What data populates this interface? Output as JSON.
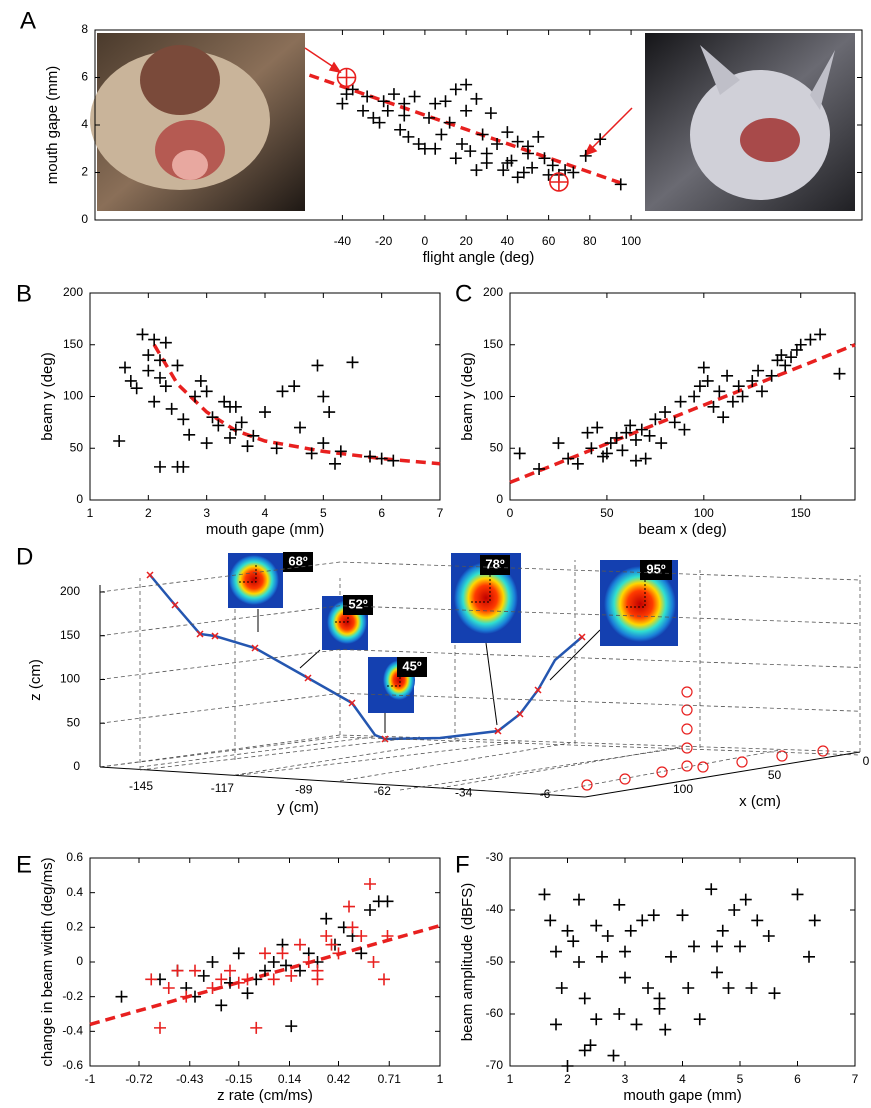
{
  "chart_data": [
    {
      "type": "scatter",
      "panel": "A",
      "xlabel": "flight angle (deg)",
      "ylabel": "mouth gape (mm)",
      "xlim": [
        -160,
        212
      ],
      "ylim": [
        0,
        8
      ],
      "xticks": [
        -40,
        -20,
        0,
        20,
        40,
        60,
        80,
        100
      ],
      "yticks": [
        0,
        2,
        4,
        6,
        8
      ],
      "series": [
        {
          "color": "#000000",
          "marker": "plus",
          "x": [
            -40,
            -38,
            -35,
            -30,
            -28,
            -25,
            -22,
            -20,
            -18,
            -15,
            -12,
            -10,
            -8,
            -5,
            -3,
            0,
            2,
            5,
            8,
            10,
            12,
            15,
            18,
            20,
            22,
            25,
            28,
            30,
            32,
            35,
            38,
            40,
            42,
            45,
            48,
            50,
            52,
            55,
            58,
            60,
            62,
            65,
            68,
            72,
            78,
            85,
            95,
            15,
            20,
            25,
            5,
            -10,
            30,
            40,
            45,
            50
          ],
          "values": [
            4.9,
            5.3,
            5.5,
            4.6,
            5.2,
            4.3,
            4.1,
            5.0,
            4.6,
            5.3,
            3.8,
            4.4,
            3.5,
            5.2,
            3.2,
            3.0,
            4.3,
            4.9,
            3.6,
            5.0,
            4.1,
            5.5,
            3.2,
            5.7,
            2.9,
            5.1,
            3.6,
            2.4,
            4.5,
            3.2,
            2.1,
            3.7,
            2.5,
            3.3,
            2.0,
            2.8,
            2.2,
            3.5,
            2.6,
            1.9,
            2.3,
            1.9,
            2.1,
            2.0,
            2.7,
            3.4,
            1.5,
            2.6,
            4.6,
            2.1,
            3.0,
            4.9,
            2.8,
            2.4,
            1.8,
            3.1
          ]
        },
        {
          "color": "#e8201f",
          "marker": "circle-plus",
          "x": [
            -38,
            65
          ],
          "values": [
            6.0,
            1.6
          ]
        }
      ],
      "fit": {
        "color": "#e8201f",
        "x": [
          -56,
          95
        ],
        "y": [
          6.1,
          1.56
        ]
      }
    },
    {
      "type": "scatter",
      "panel": "B",
      "xlabel": "mouth gape (mm)",
      "ylabel": "beam y (deg)",
      "xlim": [
        1,
        7
      ],
      "ylim": [
        0,
        200
      ],
      "xticks": [
        1,
        2,
        3,
        4,
        5,
        6,
        7
      ],
      "yticks": [
        0,
        50,
        100,
        150,
        200
      ],
      "series": [
        {
          "color": "#000000",
          "marker": "plus",
          "x": [
            1.5,
            1.6,
            1.7,
            1.8,
            1.9,
            2.0,
            2.0,
            2.1,
            2.1,
            2.2,
            2.2,
            2.3,
            2.3,
            2.4,
            2.5,
            2.5,
            2.6,
            2.7,
            2.8,
            2.9,
            3.0,
            3.0,
            3.1,
            3.2,
            3.3,
            3.4,
            3.5,
            3.5,
            3.6,
            3.7,
            3.8,
            4.0,
            4.2,
            4.3,
            4.5,
            4.6,
            4.8,
            4.9,
            5.0,
            5.0,
            5.1,
            5.2,
            5.3,
            5.5,
            5.8,
            6.0,
            6.2,
            2.2,
            2.6,
            3.4
          ],
          "values": [
            57,
            128,
            115,
            108,
            160,
            140,
            125,
            155,
            95,
            135,
            32,
            152,
            110,
            88,
            130,
            32,
            78,
            63,
            100,
            115,
            55,
            105,
            80,
            72,
            95,
            60,
            68,
            90,
            75,
            52,
            62,
            85,
            50,
            105,
            110,
            70,
            45,
            130,
            55,
            100,
            85,
            35,
            47,
            133,
            42,
            40,
            38,
            118,
            32,
            90
          ]
        }
      ],
      "fit": {
        "color": "#e8201f",
        "x": [
          2.1,
          2.5,
          3,
          3.5,
          4,
          5,
          6,
          7
        ],
        "y": [
          150,
          112,
          85,
          67,
          57,
          47,
          40,
          35
        ]
      }
    },
    {
      "type": "scatter",
      "panel": "C",
      "xlabel": "beam x (deg)",
      "ylabel": "beam y (deg)",
      "xlim": [
        0,
        178
      ],
      "ylim": [
        0,
        200
      ],
      "xticks": [
        0,
        50,
        100,
        150
      ],
      "yticks": [
        0,
        50,
        100,
        150,
        200
      ],
      "series": [
        {
          "color": "#000000",
          "marker": "plus",
          "x": [
            5,
            15,
            25,
            35,
            40,
            42,
            45,
            48,
            50,
            52,
            55,
            58,
            60,
            62,
            65,
            68,
            70,
            72,
            75,
            78,
            80,
            85,
            88,
            90,
            95,
            98,
            100,
            102,
            105,
            108,
            110,
            112,
            115,
            118,
            120,
            125,
            128,
            130,
            135,
            138,
            140,
            142,
            145,
            148,
            150,
            155,
            160,
            170,
            30,
            65
          ],
          "values": [
            45,
            30,
            55,
            35,
            65,
            50,
            70,
            42,
            45,
            55,
            60,
            48,
            65,
            72,
            58,
            68,
            40,
            62,
            78,
            55,
            85,
            75,
            95,
            68,
            100,
            110,
            128,
            115,
            90,
            105,
            80,
            120,
            95,
            110,
            100,
            115,
            125,
            105,
            120,
            135,
            140,
            130,
            138,
            145,
            150,
            155,
            160,
            122,
            40,
            38
          ]
        }
      ],
      "fit": {
        "color": "#e8201f",
        "x": [
          0,
          178
        ],
        "y": [
          17,
          150
        ]
      }
    },
    {
      "type": "line3d",
      "panel": "D",
      "xlabel": "x (cm)",
      "ylabel": "y (cm)",
      "zlabel": "z (cm)",
      "xlim": [
        0,
        100
      ],
      "ylim": [
        -145,
        -6
      ],
      "zlim": [
        0,
        200
      ],
      "xticks": [
        0,
        50,
        100
      ],
      "yticks": [
        -145,
        -117,
        -89,
        -62,
        -34,
        -6
      ],
      "zticks": [
        0,
        50,
        100,
        150,
        200
      ],
      "beam_widths": [
        "68º",
        "52º",
        "45º",
        "78º",
        "95º"
      ]
    },
    {
      "type": "scatter",
      "panel": "E",
      "xlabel": "z rate (cm/ms)",
      "ylabel": "change in beam width (deg/ms)",
      "xlim": [
        -1,
        1
      ],
      "ylim": [
        -0.6,
        0.6
      ],
      "xticks": [
        -1,
        -0.72,
        -0.43,
        -0.15,
        0.14,
        0.42,
        0.71,
        1
      ],
      "yticks": [
        -0.6,
        -0.4,
        -0.2,
        0,
        0.2,
        0.4,
        0.6
      ],
      "series": [
        {
          "color": "#000000",
          "marker": "plus",
          "x": [
            -0.82,
            -0.6,
            -0.5,
            -0.45,
            -0.4,
            -0.35,
            -0.3,
            -0.2,
            -0.15,
            -0.1,
            -0.05,
            0,
            0.05,
            0.1,
            0.15,
            0.2,
            0.25,
            0.3,
            0.35,
            0.4,
            0.45,
            0.5,
            0.55,
            0.6,
            0.65,
            0.7,
            -0.25,
            0.12
          ],
          "values": [
            -0.2,
            -0.1,
            -0.05,
            -0.15,
            -0.2,
            -0.08,
            0,
            -0.12,
            0.05,
            -0.18,
            -0.1,
            -0.05,
            0,
            0.1,
            -0.37,
            -0.05,
            0.05,
            0,
            0.25,
            0.1,
            0.2,
            0.15,
            0.05,
            0.3,
            0.35,
            0.35,
            -0.25,
            -0.02
          ]
        },
        {
          "color": "#e8201f",
          "marker": "plus",
          "x": [
            -0.65,
            -0.6,
            -0.55,
            -0.5,
            -0.45,
            -0.4,
            -0.3,
            -0.25,
            -0.2,
            -0.1,
            -0.05,
            0,
            0.05,
            0.1,
            0.15,
            0.2,
            0.25,
            0.3,
            0.35,
            0.38,
            0.42,
            0.48,
            0.5,
            0.55,
            0.6,
            0.62,
            0.68,
            0.7,
            -0.15,
            0.3
          ],
          "values": [
            -0.1,
            -0.38,
            -0.15,
            -0.05,
            -0.2,
            -0.05,
            -0.15,
            -0.1,
            -0.05,
            -0.1,
            -0.38,
            0.05,
            -0.1,
            0.05,
            -0.08,
            0.1,
            0,
            -0.1,
            0.15,
            0.1,
            0.05,
            0.32,
            0.2,
            0.15,
            0.45,
            0,
            -0.1,
            0.15,
            -0.12,
            -0.05
          ]
        }
      ],
      "fit": {
        "color": "#e8201f",
        "x": [
          -1,
          1
        ],
        "y": [
          -0.36,
          0.21
        ]
      }
    },
    {
      "type": "scatter",
      "panel": "F",
      "xlabel": "mouth gape (mm)",
      "ylabel": "beam amplitude (dBFS)",
      "xlim": [
        1,
        7
      ],
      "ylim": [
        -70,
        -30
      ],
      "xticks": [
        1,
        2,
        3,
        4,
        5,
        6,
        7
      ],
      "yticks": [
        -70,
        -60,
        -50,
        -40,
        -30
      ],
      "series": [
        {
          "color": "#000000",
          "marker": "plus",
          "x": [
            1.6,
            1.7,
            1.8,
            1.9,
            2.0,
            2.0,
            2.1,
            2.2,
            2.2,
            2.3,
            2.4,
            2.5,
            2.5,
            2.6,
            2.7,
            2.8,
            2.9,
            3.0,
            3.0,
            3.1,
            3.2,
            3.3,
            3.4,
            3.5,
            3.6,
            3.7,
            3.8,
            4.0,
            4.1,
            4.2,
            4.3,
            4.5,
            4.6,
            4.7,
            4.8,
            4.9,
            5.0,
            5.1,
            5.2,
            5.3,
            5.5,
            6.0,
            6.2,
            6.3,
            2.3,
            2.9,
            3.6,
            4.6,
            5.6,
            1.8
          ],
          "values": [
            -37,
            -42,
            -62,
            -55,
            -44,
            -70,
            -46,
            -50,
            -38,
            -57,
            -66,
            -43,
            -61,
            -49,
            -45,
            -68,
            -39,
            -48,
            -53,
            -44,
            -62,
            -42,
            -55,
            -41,
            -57,
            -63,
            -49,
            -41,
            -55,
            -47,
            -61,
            -36,
            -52,
            -44,
            -55,
            -40,
            -47,
            -38,
            -55,
            -42,
            -45,
            -37,
            -49,
            -42,
            -67,
            -60,
            -59,
            -47,
            -56,
            -48
          ]
        }
      ]
    }
  ]
}
